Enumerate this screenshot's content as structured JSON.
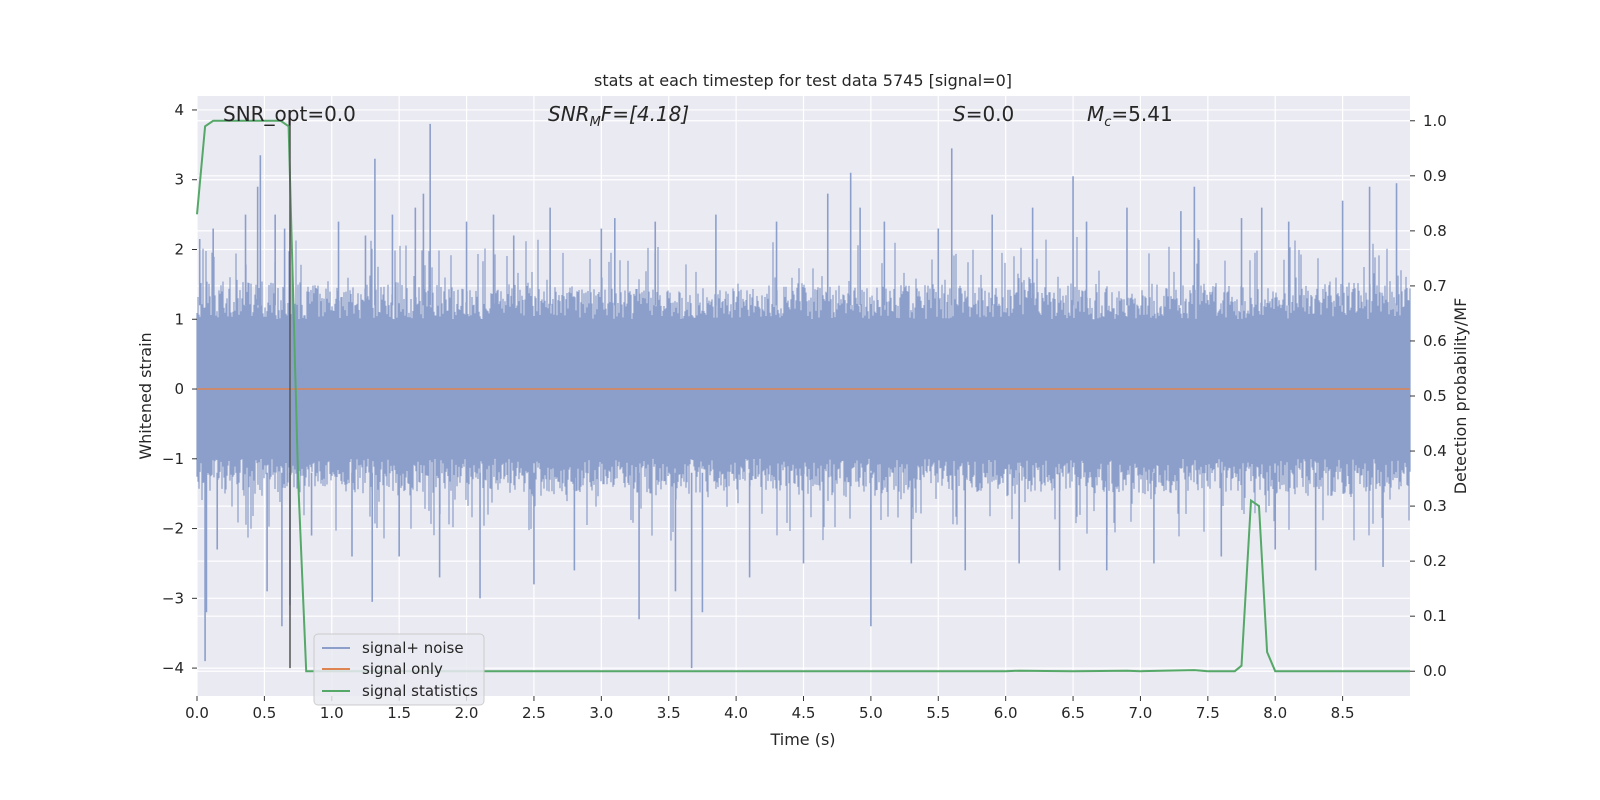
{
  "chart_data": {
    "type": "line",
    "title": "stats at each timestep for test data 5745 [signal=0]",
    "xlabel": "Time (s)",
    "ylabel_left": "Whitened strain",
    "ylabel_right": "Detection probability/MF",
    "xlim": [
      0.0,
      9.0
    ],
    "ylim_left": [
      -4.4,
      4.2
    ],
    "ylim_right": [
      -0.045,
      1.045
    ],
    "x_ticks": [
      0.0,
      0.5,
      1.0,
      1.5,
      2.0,
      2.5,
      3.0,
      3.5,
      4.0,
      4.5,
      5.0,
      5.5,
      6.0,
      6.5,
      7.0,
      7.5,
      8.0,
      8.5
    ],
    "x_tick_labels": [
      "0.0",
      "0.5",
      "1.0",
      "1.5",
      "2.0",
      "2.5",
      "3.0",
      "3.5",
      "4.0",
      "4.5",
      "5.0",
      "5.5",
      "6.0",
      "6.5",
      "7.0",
      "7.5",
      "8.0",
      "8.5"
    ],
    "y_left_ticks": [
      -4,
      -3,
      -2,
      -1,
      0,
      1,
      2,
      3,
      4
    ],
    "y_left_tick_labels": [
      "−4",
      "−3",
      "−2",
      "−1",
      "0",
      "1",
      "2",
      "3",
      "4"
    ],
    "y_right_ticks": [
      0.0,
      0.1,
      0.2,
      0.3,
      0.4,
      0.5,
      0.6,
      0.7,
      0.8,
      0.9,
      1.0
    ],
    "y_right_tick_labels": [
      "0.0",
      "0.1",
      "0.2",
      "0.3",
      "0.4",
      "0.5",
      "0.6",
      "0.7",
      "0.8",
      "0.9",
      "1.0"
    ],
    "grid": true,
    "legend_position": "lower-left",
    "colors": {
      "signal_noise": "#8c9fcb",
      "signal_only": "#dd8452",
      "signal_statistics": "#55a868",
      "marker_line": "#555555",
      "plot_background": "#eaeaf2",
      "grid": "#ffffff"
    },
    "series": [
      {
        "name": "signal+ noise",
        "axis": "left",
        "style": "noise-band",
        "envelope_sample_times": [
          0.0,
          0.5,
          1.0,
          1.5,
          2.0,
          2.5,
          3.0,
          3.5,
          4.0,
          4.5,
          5.0,
          5.5,
          6.0,
          6.5,
          7.0,
          7.5,
          8.0,
          8.5,
          9.0
        ],
        "envelope_upper": [
          1.6,
          1.7,
          1.5,
          1.6,
          1.5,
          1.6,
          1.5,
          1.5,
          1.5,
          1.6,
          1.5,
          1.6,
          1.5,
          1.6,
          1.5,
          1.6,
          1.5,
          1.6,
          1.5
        ],
        "envelope_lower": [
          -1.6,
          -1.6,
          -1.5,
          -1.6,
          -1.5,
          -1.6,
          -1.5,
          -1.6,
          -1.5,
          -1.6,
          -1.6,
          -1.5,
          -1.6,
          -1.5,
          -1.6,
          -1.5,
          -1.6,
          -1.6,
          -1.5
        ],
        "peaks": [
          {
            "x": 0.02,
            "y": 2.15
          },
          {
            "x": 0.06,
            "y": -3.9
          },
          {
            "x": 0.07,
            "y": -3.2
          },
          {
            "x": 0.12,
            "y": 2.3
          },
          {
            "x": 0.15,
            "y": -2.3
          },
          {
            "x": 0.36,
            "y": 2.5
          },
          {
            "x": 0.45,
            "y": 2.9
          },
          {
            "x": 0.47,
            "y": 3.35
          },
          {
            "x": 0.52,
            "y": -2.9
          },
          {
            "x": 0.58,
            "y": 2.5
          },
          {
            "x": 0.63,
            "y": -3.4
          },
          {
            "x": 0.65,
            "y": 2.3
          },
          {
            "x": 0.69,
            "y": -3.1
          },
          {
            "x": 0.85,
            "y": -2.1
          },
          {
            "x": 1.05,
            "y": 2.4
          },
          {
            "x": 1.15,
            "y": -2.4
          },
          {
            "x": 1.25,
            "y": 2.2
          },
          {
            "x": 1.3,
            "y": -3.05
          },
          {
            "x": 1.32,
            "y": 3.3
          },
          {
            "x": 1.45,
            "y": 2.5
          },
          {
            "x": 1.5,
            "y": -2.4
          },
          {
            "x": 1.62,
            "y": 2.6
          },
          {
            "x": 1.68,
            "y": 2.8
          },
          {
            "x": 1.73,
            "y": 3.8
          },
          {
            "x": 1.8,
            "y": -2.7
          },
          {
            "x": 2.0,
            "y": 2.4
          },
          {
            "x": 2.1,
            "y": -3.0
          },
          {
            "x": 2.2,
            "y": 2.5
          },
          {
            "x": 2.35,
            "y": 2.2
          },
          {
            "x": 2.5,
            "y": -2.8
          },
          {
            "x": 2.62,
            "y": 2.6
          },
          {
            "x": 2.8,
            "y": -2.6
          },
          {
            "x": 3.0,
            "y": 2.3
          },
          {
            "x": 3.1,
            "y": 2.45
          },
          {
            "x": 3.28,
            "y": -3.3
          },
          {
            "x": 3.4,
            "y": 2.4
          },
          {
            "x": 3.55,
            "y": -2.9
          },
          {
            "x": 3.67,
            "y": -4.0
          },
          {
            "x": 3.75,
            "y": -3.2
          },
          {
            "x": 3.85,
            "y": 2.5
          },
          {
            "x": 4.1,
            "y": -2.7
          },
          {
            "x": 4.3,
            "y": 2.4
          },
          {
            "x": 4.5,
            "y": -2.5
          },
          {
            "x": 4.68,
            "y": 2.8
          },
          {
            "x": 4.85,
            "y": 3.1
          },
          {
            "x": 4.92,
            "y": 2.6
          },
          {
            "x": 5.0,
            "y": -3.4
          },
          {
            "x": 5.1,
            "y": 2.4
          },
          {
            "x": 5.3,
            "y": -2.5
          },
          {
            "x": 5.5,
            "y": 2.3
          },
          {
            "x": 5.6,
            "y": 3.45
          },
          {
            "x": 5.7,
            "y": -2.6
          },
          {
            "x": 5.9,
            "y": 2.5
          },
          {
            "x": 6.1,
            "y": -2.5
          },
          {
            "x": 6.2,
            "y": 2.6
          },
          {
            "x": 6.4,
            "y": -2.6
          },
          {
            "x": 6.5,
            "y": 3.05
          },
          {
            "x": 6.6,
            "y": 2.4
          },
          {
            "x": 6.75,
            "y": -2.6
          },
          {
            "x": 6.9,
            "y": 2.6
          },
          {
            "x": 7.1,
            "y": -2.5
          },
          {
            "x": 7.3,
            "y": 2.55
          },
          {
            "x": 7.4,
            "y": 2.9
          },
          {
            "x": 7.6,
            "y": -2.4
          },
          {
            "x": 7.75,
            "y": 2.45
          },
          {
            "x": 7.9,
            "y": 2.6
          },
          {
            "x": 8.0,
            "y": -2.3
          },
          {
            "x": 8.1,
            "y": 2.4
          },
          {
            "x": 8.3,
            "y": -2.6
          },
          {
            "x": 8.5,
            "y": 2.7
          },
          {
            "x": 8.7,
            "y": 2.9
          },
          {
            "x": 8.8,
            "y": -2.55
          },
          {
            "x": 8.9,
            "y": 2.95
          }
        ]
      },
      {
        "name": "signal only",
        "axis": "left",
        "x": [
          0.0,
          9.0
        ],
        "y": [
          0.0,
          0.0
        ]
      },
      {
        "name": "signal statistics",
        "axis": "right",
        "x": [
          0.0,
          0.06,
          0.12,
          0.25,
          0.5,
          0.62,
          0.68,
          0.75,
          0.81,
          0.9,
          2.0,
          3.0,
          4.0,
          5.0,
          6.0,
          6.1,
          6.5,
          6.9,
          7.0,
          7.4,
          7.5,
          7.7,
          7.75,
          7.82,
          7.88,
          7.94,
          8.0,
          8.5,
          9.0
        ],
        "y": [
          0.83,
          0.99,
          1.0,
          1.0,
          1.0,
          1.0,
          0.99,
          0.35,
          0.0,
          0.0,
          0.0,
          0.0,
          0.0,
          0.0,
          0.0,
          0.001,
          0.0,
          0.001,
          0.0,
          0.002,
          0.0,
          0.0,
          0.01,
          0.31,
          0.3,
          0.035,
          0.0,
          0.0,
          0.0
        ]
      }
    ],
    "vertical_marker": {
      "x": 0.69,
      "y_from": -4.0,
      "y_to": 4.0
    },
    "annotations": {
      "snr_opt": {
        "label": "SNR_opt=0.0"
      },
      "snr_mf": {
        "prefix": "SNR",
        "sub": "M",
        "suffix": "F=[4.18]"
      },
      "s_stat": {
        "prefix": "S",
        "suffix": "=0.0"
      },
      "mc": {
        "prefix": "M",
        "sub": "c",
        "suffix": "=5.41"
      }
    }
  }
}
